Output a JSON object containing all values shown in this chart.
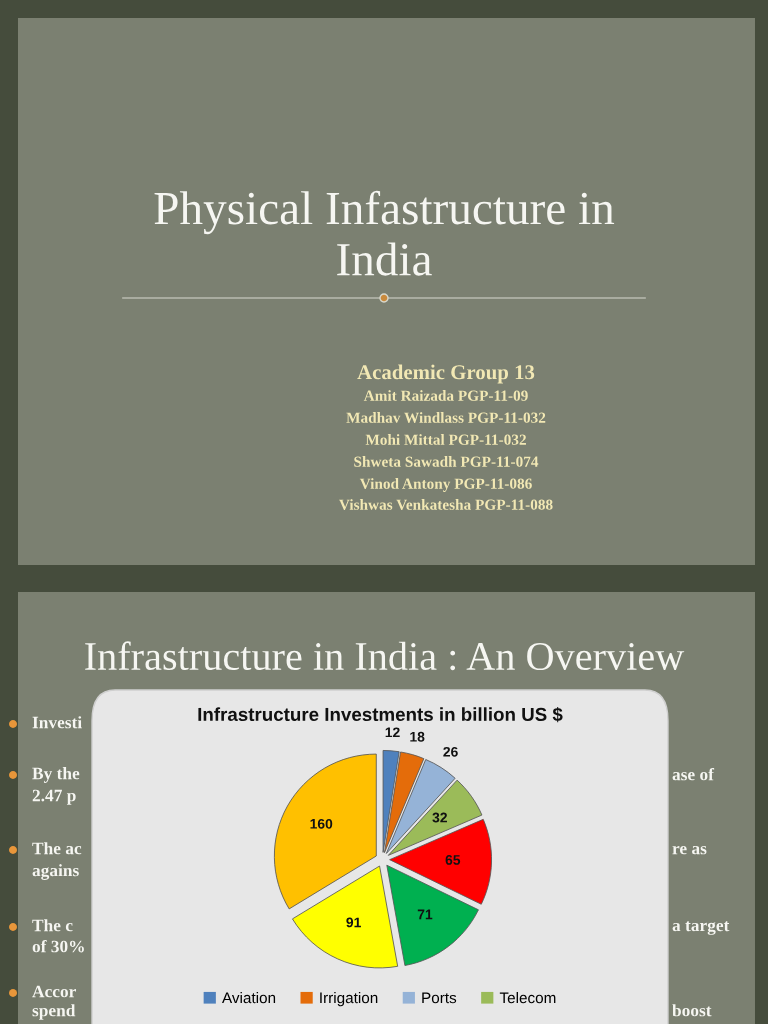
{
  "chart_data": {
    "type": "pie",
    "title": "Infrastructure Investments in billion US $",
    "categories": [
      "Aviation",
      "Irrigation",
      "Ports",
      "Telecom",
      null,
      null,
      null,
      null
    ],
    "values": [
      12,
      18,
      26,
      32,
      65,
      71,
      91,
      160
    ],
    "colors": [
      "#4f81bd",
      "#e46c0a",
      "#95b3d7",
      "#9bbb59",
      "#ff0000",
      "#00b050",
      "#ffff00",
      "#ffc000"
    ],
    "data_labels": true,
    "legend": "bottom",
    "annotations": [
      "Physical Infastructure in\nIndia",
      "Academic Group 13",
      "Amit Raizada PGP-11-09",
      "Madhav Windlass PGP-11-032",
      "Mohi Mittal PGP-11-032",
      "Shweta Sawadh PGP-11-074",
      "Vinod Antony PGP-11-086",
      "Vishwas Venkatesha PGP-11-088",
      "Infrastructure in India : An Overview",
      "Investi",
      "By the",
      "2.47 p",
      "The ac",
      "agains",
      "The c",
      "of 30%",
      "Accor",
      "spend",
      "ase of",
      "re as",
      "a target",
      "boost"
    ]
  }
}
